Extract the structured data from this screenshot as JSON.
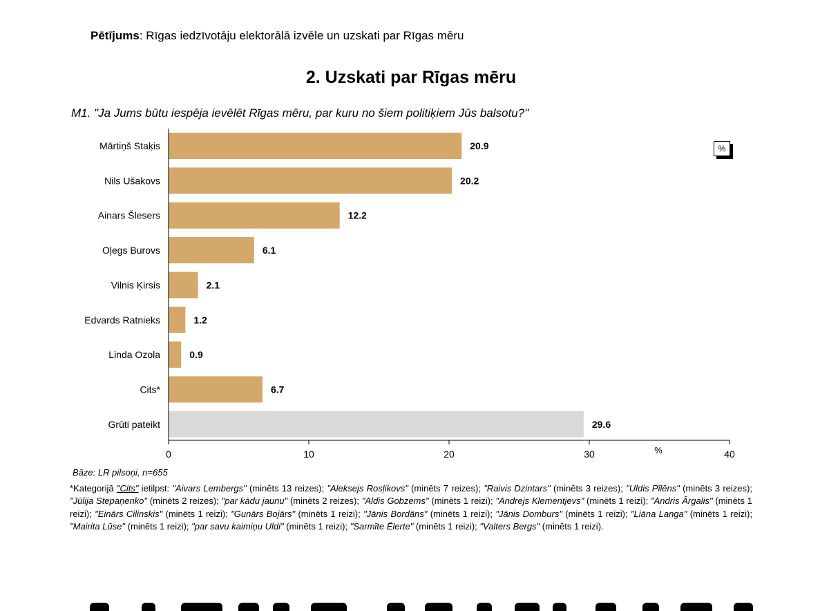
{
  "header": {
    "study_label": "Pētījums",
    "study_text": ": Rīgas iedzīvotāju elektorālā izvēle un uzskati par Rīgas mēru",
    "section_title": "2. Uzskati par Rīgas mēru"
  },
  "chart_data": {
    "type": "bar",
    "orientation": "horizontal",
    "title": "M1. \"Ja Jums būtu iespēja ievēlēt Rīgas mēru, par kuru no šiem politiķiem Jūs balsotu?\"",
    "categories": [
      "Mārtiņš Staķis",
      "Nils Ušakovs",
      "Ainars Šlesers",
      "Oļegs Burovs",
      "Vilnis Ķirsis",
      "Edvards Ratnieks",
      "Linda Ozola",
      "Cits*",
      "Grūti pateikt"
    ],
    "values": [
      20.9,
      20.2,
      12.2,
      6.1,
      2.1,
      1.2,
      0.9,
      6.7,
      29.6
    ],
    "value_labels": [
      "20.9",
      "20.2",
      "12.2",
      "6.1",
      "2.1",
      "1.2",
      "0.9",
      "6.7",
      "29.6"
    ],
    "bar_colors": [
      "#d4a76a",
      "#d4a76a",
      "#d4a76a",
      "#d4a76a",
      "#d4a76a",
      "#d4a76a",
      "#d4a76a",
      "#d4a76a",
      "#d9d9d9"
    ],
    "xlim": [
      0,
      40
    ],
    "xticks": [
      "0",
      "10",
      "20",
      "30",
      "40"
    ],
    "xtick_values": [
      0,
      10,
      20,
      30,
      40
    ],
    "xlabel": "%",
    "unit_box": "%",
    "grid": false
  },
  "base_note": "Bāze: LR pilsoņi, n=655",
  "footnote": {
    "prefix": "*Kategorijā ",
    "cits": "\"Cits\"",
    "intro": " ietilpst: ",
    "items": [
      {
        "name": "\"Aivars Lembergs\"",
        "count": " (minēts 13 reizes); "
      },
      {
        "name": "\"Aleksejs Rosļikovs\"",
        "count": " (minēts 7 reizes); "
      },
      {
        "name": "\"Raivis Dzintars\"",
        "count": " (minēts 3 reizes); "
      },
      {
        "name": "\"Uldis Pīlēns\"",
        "count": " (minēts 3 reizes); "
      },
      {
        "name": "\"Jūlija Stepaņenko\"",
        "count": " (minēts 2 reizes); "
      },
      {
        "name": "\"par kādu jaunu\"",
        "count": " (minēts 2 reizes); "
      },
      {
        "name": "\"Aldis Gobzems\"",
        "count": " (minēts 1 reizi); "
      },
      {
        "name": "\"Andrejs Klementjevs\"",
        "count": " (minēts 1 reizi); "
      },
      {
        "name": "\"Andris Ārgalis\"",
        "count": " (minēts 1 reizi); "
      },
      {
        "name": "\"Einārs Cilinskis\"",
        "count": " (minēts 1 reizi); "
      },
      {
        "name": "\"Gunārs Bojārs\"",
        "count": " (minēts 1 reizi); "
      },
      {
        "name": "\"Jānis Bordāns\"",
        "count": " (minēts 1 reizi); "
      },
      {
        "name": "\"Jānis Domburs\"",
        "count": " (minēts 1 reizi); "
      },
      {
        "name": "\"Liāna Langa\"",
        "count": " (minēts 1 reizi); "
      },
      {
        "name": "\"Mairita Lūse\"",
        "count": " (minēts 1 reizi); "
      },
      {
        "name": "\"par savu kaimiņu Uldi\"",
        "count": " (minēts 1 reizi); "
      },
      {
        "name": "\"Sarmīte Ēlerte\"",
        "count": " (minēts 1 reizi); "
      },
      {
        "name": "\"Valters Bergs\"",
        "count": " (minēts 1 reizi)."
      }
    ]
  }
}
